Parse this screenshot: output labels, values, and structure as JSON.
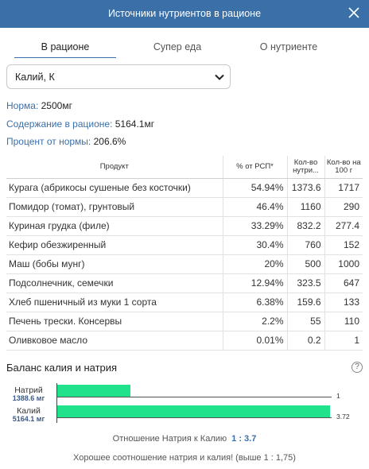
{
  "window": {
    "title": "Источники нутриентов в рационе"
  },
  "tabs": [
    {
      "label": "В рационе",
      "active": true
    },
    {
      "label": "Супер еда",
      "active": false
    },
    {
      "label": "О нутриенте",
      "active": false
    }
  ],
  "nutrient_select": {
    "value": "Калий, К"
  },
  "stats": {
    "norm": {
      "label": "Норма:",
      "value": "2500мг"
    },
    "content": {
      "label": "Содержание в рационе:",
      "value": "5164.1мг"
    },
    "percent": {
      "label": "Процент от нормы:",
      "value": "206.6%"
    }
  },
  "table": {
    "headers": [
      "Продукт",
      "% от РСП*",
      "Кол-во нутри...",
      "Кол-во на 100 г"
    ],
    "rows": [
      [
        "Курага (абрикосы сушеные без косточки)",
        "54.94%",
        "1373.6",
        "1717"
      ],
      [
        "Помидор (томат), грунтовый",
        "46.4%",
        "1160",
        "290"
      ],
      [
        "Куриная грудка (филе)",
        "33.29%",
        "832.2",
        "277.4"
      ],
      [
        "Кефир обезжиренный",
        "30.4%",
        "760",
        "152"
      ],
      [
        "Маш (бобы мунг)",
        "20%",
        "500",
        "1000"
      ],
      [
        "Подсолнечник, семечки",
        "12.94%",
        "323.5",
        "647"
      ],
      [
        "Хлеб пшеничный из муки 1 сорта",
        "6.38%",
        "159.6",
        "133"
      ],
      [
        "Печень трески. Консервы",
        "2.2%",
        "55",
        "110"
      ],
      [
        "Оливковое масло",
        "0.01%",
        "0.2",
        "1"
      ]
    ]
  },
  "balance": {
    "title": "Баланс калия и натрия",
    "help_icon": "question-circle-icon"
  },
  "chart_data": {
    "type": "bar",
    "orientation": "horizontal",
    "categories": [
      "Натрий",
      "Калий"
    ],
    "amount_labels": [
      "1388.6 мг",
      "5164.1 мг"
    ],
    "values": [
      1388.6,
      5164.1
    ],
    "value_labels": [
      "1",
      "3.72"
    ],
    "bar_color": "#1fe28a",
    "grid": false
  },
  "ratio": {
    "label": "Отношение Натрия к Калию",
    "value": "1 : 3.7"
  },
  "verdict": "Хорошее соотношение натрия и калия! (выше 1 : 1,75)"
}
